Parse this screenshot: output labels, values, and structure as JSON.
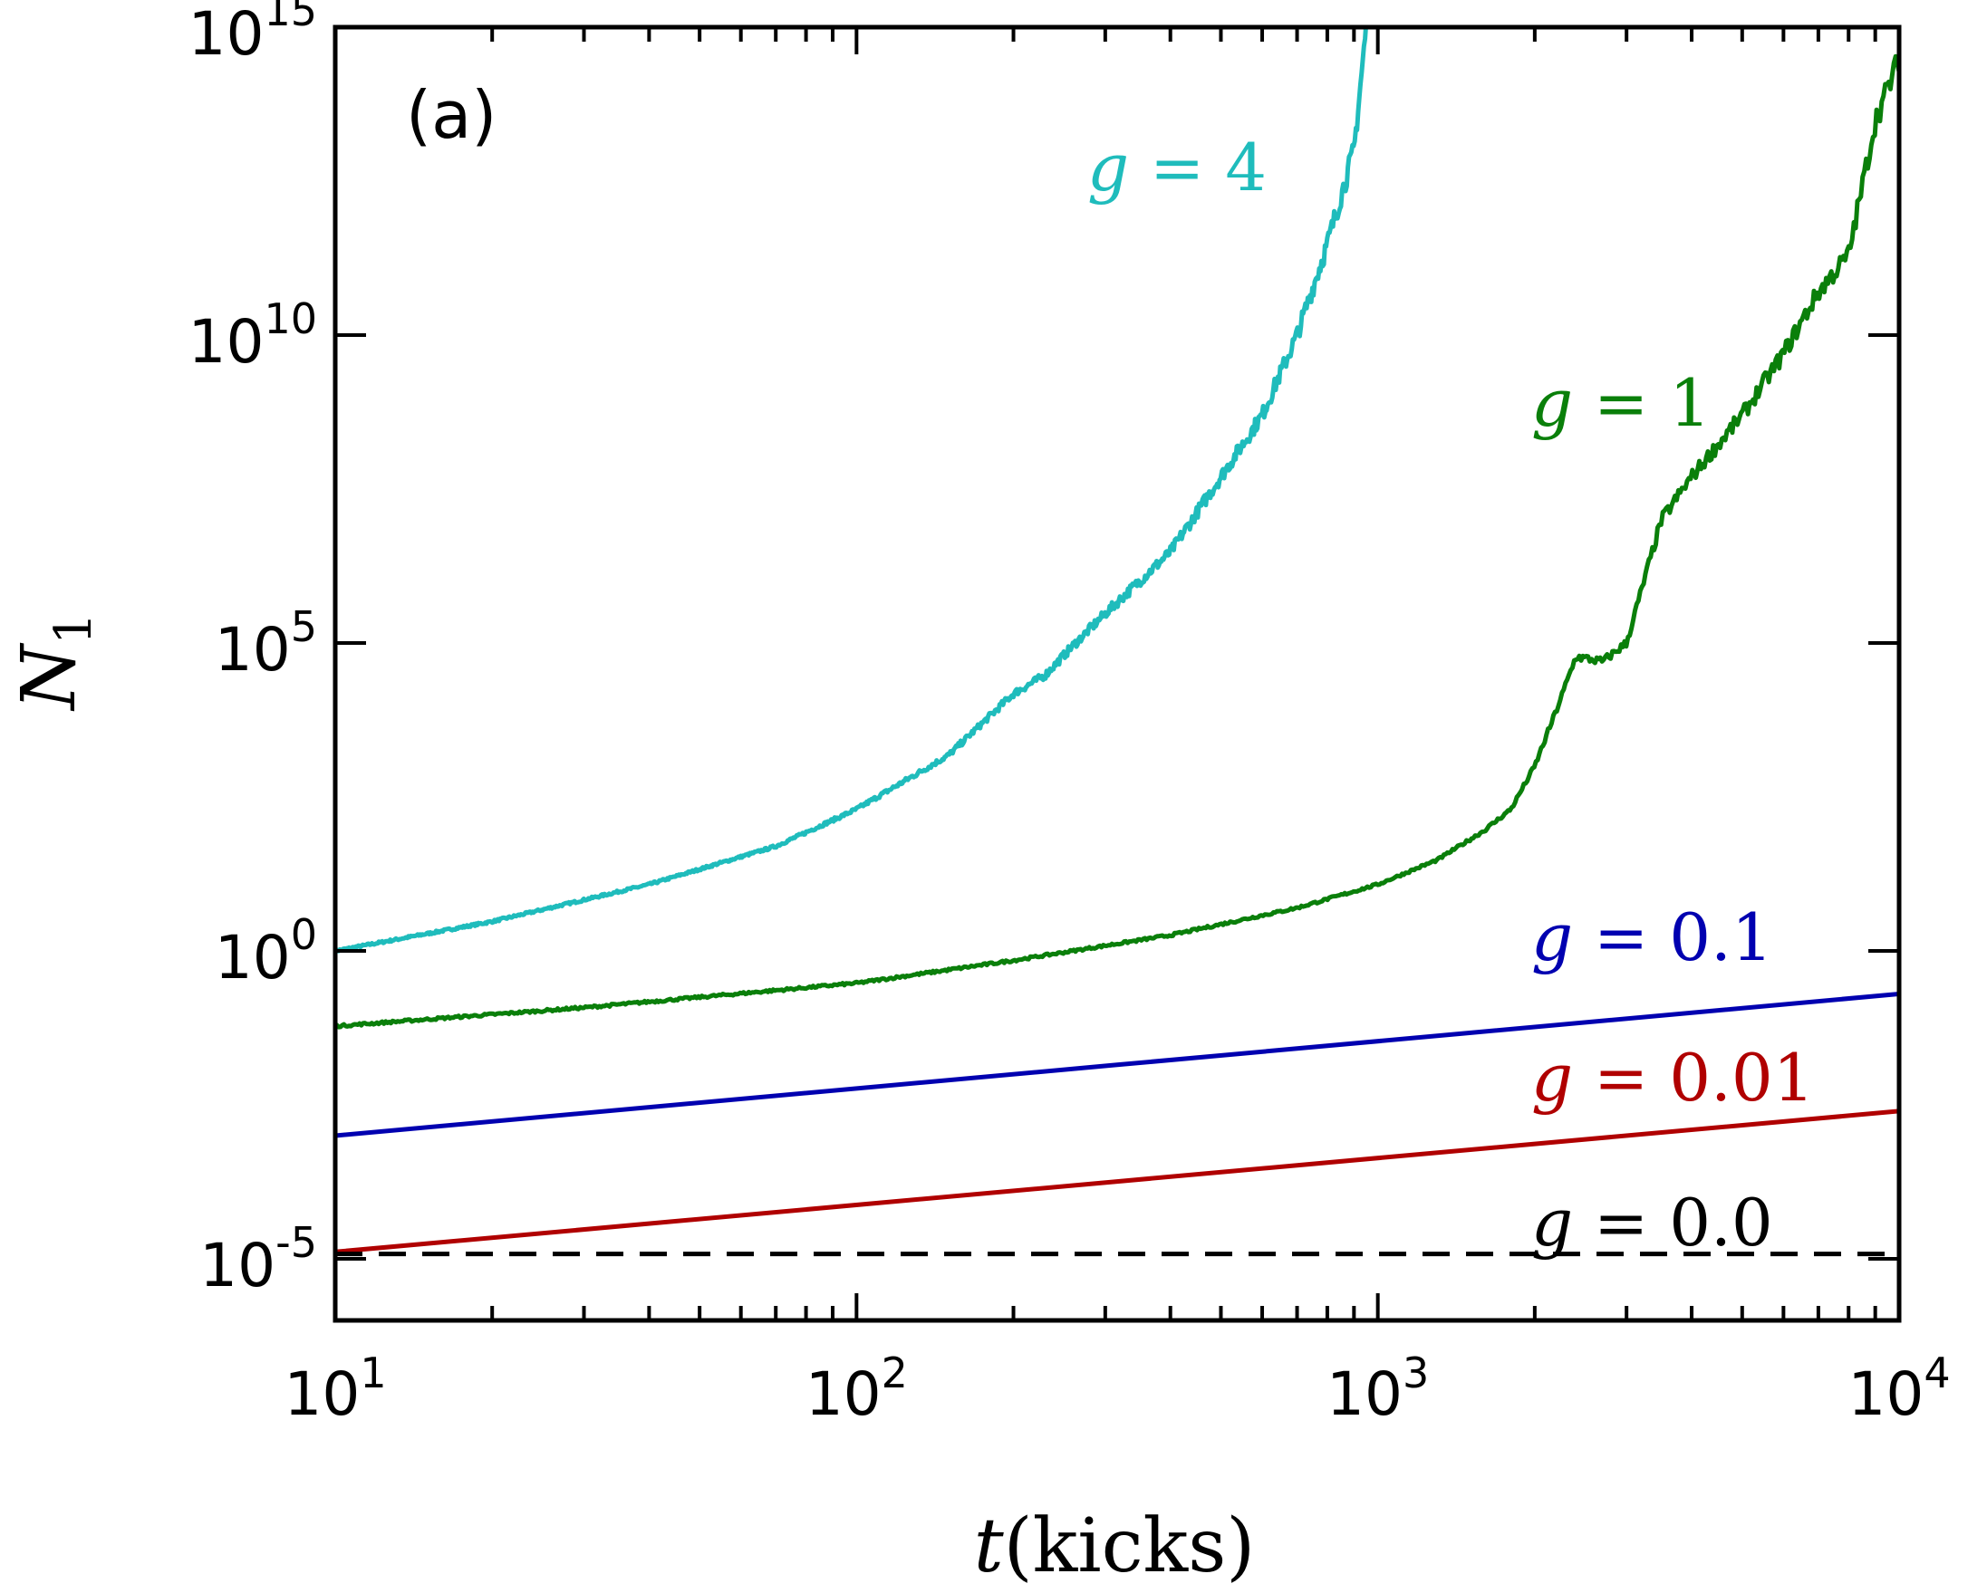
{
  "chart_data": {
    "type": "line",
    "panel_label": "(a)",
    "xscale": "log",
    "yscale": "log",
    "xlabel": "t(kicks)",
    "ylabel": "N1",
    "xlim": [
      10,
      10000
    ],
    "ylim": [
      1e-06,
      1000000000000000
    ],
    "x_ticks": [
      {
        "value": 10,
        "base": "10",
        "exp": "1"
      },
      {
        "value": 100,
        "base": "10",
        "exp": "2"
      },
      {
        "value": 1000,
        "base": "10",
        "exp": "3"
      },
      {
        "value": 10000,
        "base": "10",
        "exp": "4"
      }
    ],
    "y_ticks": [
      {
        "value": 1e-05,
        "base": "10",
        "exp": "-5"
      },
      {
        "value": 1,
        "base": "10",
        "exp": "0"
      },
      {
        "value": 100000,
        "base": "10",
        "exp": "5"
      },
      {
        "value": 10000000000,
        "base": "10",
        "exp": "10"
      },
      {
        "value": 1000000000000000,
        "base": "10",
        "exp": "15"
      }
    ],
    "series": [
      {
        "name": "g = 4",
        "g": "g",
        "eq": "=",
        "val": "4",
        "color": "#1fbcbc",
        "style": "solid",
        "noisy": true,
        "x": [
          10,
          20,
          40,
          70,
          100,
          150,
          200,
          230,
          260,
          300,
          400,
          500,
          600,
          700,
          800,
          900,
          950
        ],
        "y": [
          1,
          3,
          12,
          50,
          200,
          1500,
          15000,
          30000,
          90000,
          300000,
          3000000,
          50000000,
          500000000,
          10000000000,
          300000000000,
          10000000000000,
          1000000000000000
        ]
      },
      {
        "name": "g = 1",
        "g": "g",
        "eq": "=",
        "val": "1",
        "color": "#0a7f0a",
        "style": "solid",
        "noisy": true,
        "x": [
          10,
          30,
          100,
          200,
          400,
          700,
          1000,
          1300,
          1600,
          1800,
          2000,
          2200,
          2400,
          2700,
          3000,
          3500,
          4000,
          5000,
          6000,
          7000,
          8000,
          9000,
          10000
        ],
        "y": [
          0.06,
          0.12,
          0.3,
          0.7,
          1.8,
          5,
          12,
          30,
          90,
          200,
          1000,
          8000,
          60000,
          50000,
          100000,
          10000000,
          50000000,
          500000000,
          5000000000,
          50000000000,
          200000000000,
          30000000000000,
          300000000000000
        ]
      },
      {
        "name": "g = 0.1",
        "g": "g",
        "eq": "=",
        "val": "0.1",
        "color": "#0000b0",
        "style": "solid",
        "noisy": false,
        "x": [
          10,
          10000
        ],
        "y": [
          0.001,
          0.2
        ]
      },
      {
        "name": "g = 0.01",
        "g": "g",
        "eq": "=",
        "val": "0.01",
        "color": "#b00000",
        "style": "solid",
        "noisy": false,
        "x": [
          10,
          10000
        ],
        "y": [
          1.3e-05,
          0.0025
        ]
      },
      {
        "name": "g = 0.0",
        "g": "g",
        "eq": "=",
        "val": "0.0",
        "color": "#000000",
        "style": "dashed",
        "noisy": false,
        "x": [
          10,
          10000
        ],
        "y": [
          1.2e-05,
          1.2e-05
        ]
      }
    ]
  }
}
